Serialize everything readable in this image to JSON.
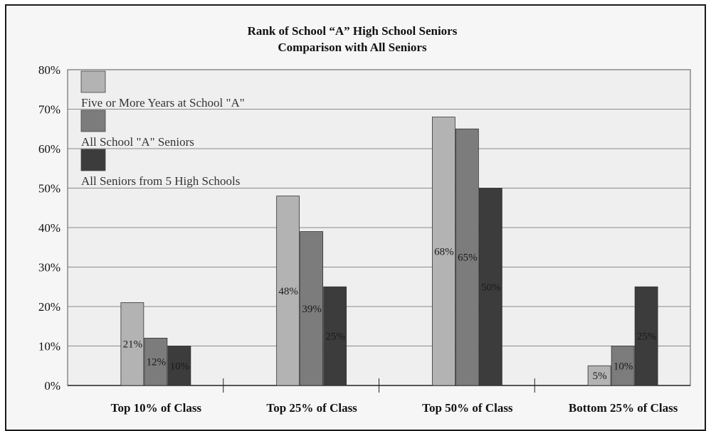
{
  "chart_data": {
    "type": "bar",
    "title": "Rank of School “A” High School Seniors",
    "subtitle": "Comparison with All Seniors",
    "categories": [
      "Top 10% of Class",
      "Top 25% of Class",
      "Top 50% of Class",
      "Bottom 25% of Class"
    ],
    "series": [
      {
        "name": "Five or More Years at School \"A\"",
        "values": [
          21,
          48,
          68,
          5
        ],
        "labels": [
          "21%",
          "48%",
          "68%",
          "5%"
        ],
        "color": "#b3b3b3"
      },
      {
        "name": "All School \"A\" Seniors",
        "values": [
          12,
          39,
          65,
          10
        ],
        "labels": [
          "12%",
          "39%",
          "65%",
          "10%"
        ],
        "color": "#7c7c7c"
      },
      {
        "name": "All Seniors from 5 High Schools",
        "values": [
          10,
          25,
          50,
          25
        ],
        "labels": [
          "10%",
          "25%",
          "50%",
          "25%"
        ],
        "color": "#3c3c3c"
      }
    ],
    "yticks": [
      "0%",
      "10%",
      "20%",
      "30%",
      "40%",
      "50%",
      "60%",
      "70%",
      "80%"
    ],
    "ylim": [
      0,
      80
    ],
    "grid": true,
    "legend_position": "top-left"
  }
}
